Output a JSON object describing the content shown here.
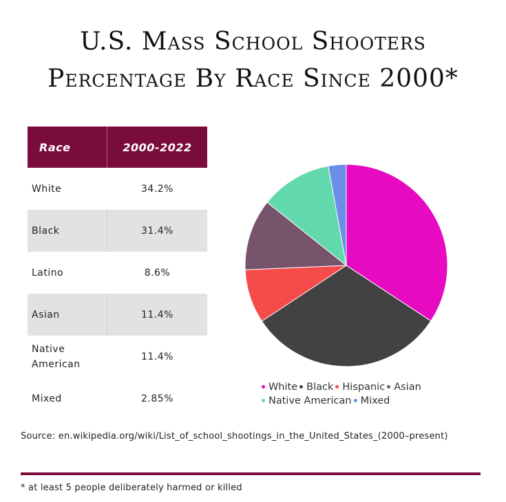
{
  "title": {
    "line1": "U.S. Mass School Shooters",
    "line2": "Percentage By Race Since 2000*"
  },
  "table": {
    "headers": [
      "Race",
      "2000-2022"
    ],
    "rows": [
      {
        "race": "White",
        "value": "34.2%"
      },
      {
        "race": "Black",
        "value": "31.4%"
      },
      {
        "race": "Latino",
        "value": "8.6%"
      },
      {
        "race": "Asian",
        "value": "11.4%"
      },
      {
        "race": "Native American",
        "value": "11.4%"
      },
      {
        "race": "Mixed",
        "value": "2.85%"
      }
    ],
    "header_color": "#7a0c3c",
    "stripe_color": "#e2e2e2"
  },
  "chart_data": {
    "type": "pie",
    "title": "U.S. Mass School Shooters Percentage By Race Since 2000*",
    "categories": [
      "White",
      "Black",
      "Hispanic",
      "Asian",
      "Native American",
      "Mixed"
    ],
    "values": [
      34.2,
      31.4,
      8.6,
      11.4,
      11.4,
      2.85
    ],
    "colors": [
      "#e60ac0",
      "#424242",
      "#f64b4b",
      "#77546c",
      "#62d9ac",
      "#6b8ee6"
    ],
    "legend_position": "bottom"
  },
  "source": "Source: en.wikipedia.org/wiki/List_of_school_shootings_in_the_United_States_(2000–present)",
  "footnote": "* at least 5 people deliberately harmed or killed",
  "accent_color": "#7a0c3c"
}
